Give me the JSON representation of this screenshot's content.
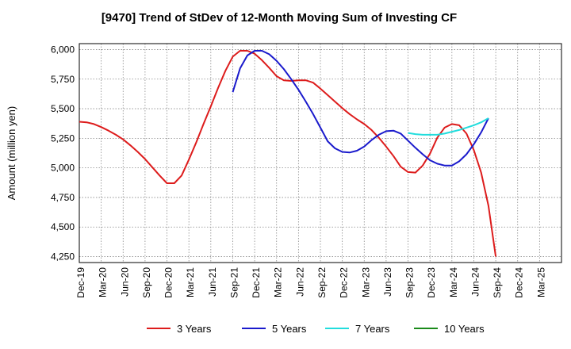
{
  "chart_data": {
    "type": "line",
    "title": "[9470]  Trend of StDev of 12-Month Moving Sum of Investing CF",
    "ylabel": "Amount (million yen)",
    "xlabel": "",
    "ylim": [
      4200,
      6050
    ],
    "y_ticks": [
      "4,250",
      "4,500",
      "4,750",
      "5,000",
      "5,250",
      "5,500",
      "5,750",
      "6,000"
    ],
    "y_tick_values": [
      4250,
      4500,
      4750,
      5000,
      5250,
      5500,
      5750,
      6000
    ],
    "x_ticks": [
      "Dec-19",
      "Mar-20",
      "Jun-20",
      "Sep-20",
      "Dec-20",
      "Mar-21",
      "Jun-21",
      "Sep-21",
      "Dec-21",
      "Mar-22",
      "Jun-22",
      "Sep-22",
      "Dec-22",
      "Mar-23",
      "Jun-23",
      "Sep-23",
      "Dec-23",
      "Mar-24",
      "Jun-24",
      "Sep-24",
      "Dec-24",
      "Mar-25"
    ],
    "grid": true,
    "legend_position": "bottom",
    "series": [
      {
        "name": "3 Years",
        "color": "#dd1c1c",
        "start": "Dec-19",
        "values": [
          5390,
          5385,
          5370,
          5345,
          5315,
          5280,
          5240,
          5190,
          5135,
          5075,
          5005,
          4935,
          4870,
          4870,
          4935,
          5070,
          5215,
          5370,
          5520,
          5675,
          5820,
          5940,
          5990,
          5990,
          5965,
          5910,
          5845,
          5775,
          5740,
          5735,
          5740,
          5740,
          5720,
          5670,
          5615,
          5560,
          5505,
          5455,
          5410,
          5370,
          5320,
          5255,
          5180,
          5100,
          5010,
          4965,
          4960,
          5020,
          5120,
          5255,
          5340,
          5370,
          5360,
          5290,
          5150,
          4960,
          4680,
          4250
        ]
      },
      {
        "name": "5 Years",
        "color": "#1a1acc",
        "start": "Sep-21",
        "values": [
          5640,
          5840,
          5950,
          5990,
          5990,
          5960,
          5905,
          5835,
          5750,
          5660,
          5560,
          5455,
          5340,
          5225,
          5165,
          5135,
          5130,
          5145,
          5180,
          5235,
          5280,
          5310,
          5315,
          5290,
          5230,
          5170,
          5115,
          5065,
          5035,
          5020,
          5020,
          5055,
          5115,
          5200,
          5300,
          5420
        ]
      },
      {
        "name": "7 Years",
        "color": "#22dddd",
        "start": "Sep-23",
        "values": [
          5295,
          5285,
          5280,
          5280,
          5280,
          5290,
          5305,
          5320,
          5340,
          5360,
          5385,
          5420
        ]
      },
      {
        "name": "10 Years",
        "color": "#1a8a1a",
        "start": "Sep-24",
        "values": []
      }
    ]
  }
}
